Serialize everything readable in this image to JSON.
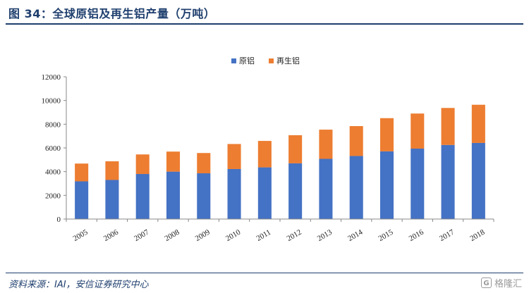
{
  "header": {
    "title": "图 34：全球原铝及再生铝产量（万吨）"
  },
  "footer": {
    "source": "资料来源：IAI，安信证券研究中心",
    "watermark": "格隆汇",
    "watermark_icon": "G"
  },
  "colors": {
    "primary": "#4472c4",
    "recycled": "#ed7d31",
    "axis": "#888888",
    "title": "#1f3f6e"
  },
  "chart_data": {
    "type": "bar",
    "stacked": true,
    "title": "",
    "xlabel": "",
    "ylabel": "",
    "ylim": [
      0,
      12000
    ],
    "yticks": [
      0,
      2000,
      4000,
      6000,
      8000,
      10000,
      12000
    ],
    "grid": false,
    "legend_position": "top",
    "categories": [
      "2005",
      "2006",
      "2007",
      "2008",
      "2009",
      "2010",
      "2011",
      "2012",
      "2013",
      "2014",
      "2015",
      "2016",
      "2017",
      "2018"
    ],
    "series": [
      {
        "name": "原铝",
        "color": "#4472c4",
        "values": [
          3180,
          3300,
          3800,
          4000,
          3860,
          4220,
          4360,
          4700,
          5080,
          5320,
          5710,
          5940,
          6250,
          6420
        ]
      },
      {
        "name": "再生铝",
        "color": "#ed7d31",
        "values": [
          1500,
          1570,
          1650,
          1690,
          1710,
          2110,
          2230,
          2370,
          2460,
          2520,
          2800,
          2960,
          3120,
          3220
        ]
      }
    ]
  }
}
